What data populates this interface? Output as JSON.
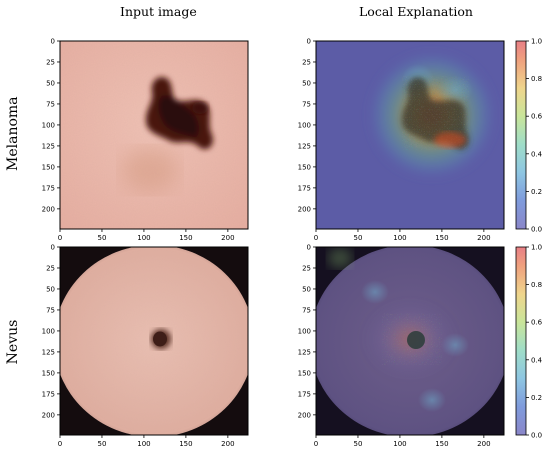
{
  "columns": [
    {
      "title": "Input image"
    },
    {
      "title": "Local Explanation"
    }
  ],
  "rows": [
    {
      "title": "Melanoma"
    },
    {
      "title": "Nevus"
    }
  ],
  "axis": {
    "x_ticks": [
      "0",
      "50",
      "100",
      "150",
      "200"
    ],
    "y_ticks": [
      "0",
      "25",
      "50",
      "75",
      "100",
      "125",
      "150",
      "175",
      "200"
    ],
    "image_extent": [
      0,
      224
    ]
  },
  "colorbar": {
    "ticks": [
      "1.0",
      "0.8",
      "0.6",
      "0.4",
      "0.2",
      "0.0"
    ],
    "range": [
      0.0,
      1.0
    ],
    "colormap": "jet (semi-transparent)"
  },
  "colors": {
    "melanoma_skin": "#e9b5a8",
    "melanoma_lesion": "#4a1410",
    "nevus_skin": "#e7b9ab",
    "nevus_lesion": "#5a3028",
    "overlay_low": "#5a5aa8",
    "overlay_high": "#e03c1e"
  }
}
